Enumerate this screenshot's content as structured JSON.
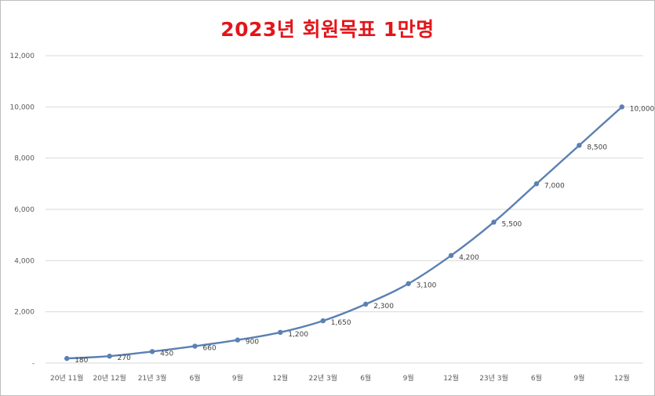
{
  "chart_data": {
    "type": "line",
    "title": "2023년 회원목표 1만명",
    "categories": [
      "20년 11월",
      "20년 12월",
      "21년 3월",
      "6월",
      "9월",
      "12월",
      "22년 3월",
      "6월",
      "9월",
      "12월",
      "23년 3월",
      "6월",
      "9월",
      "12월"
    ],
    "series": [
      {
        "values": [
          180,
          270,
          450,
          660,
          900,
          1200,
          1650,
          2300,
          3100,
          4200,
          5500,
          7000,
          8500,
          10000
        ],
        "labels": [
          "180",
          "270",
          "450",
          "660",
          "900",
          "1,200",
          "1,650",
          "2,300",
          "3,100",
          "4,200",
          "5,500",
          "7,000",
          "8,500",
          "10,000"
        ]
      }
    ],
    "ylim": [
      0,
      12000
    ],
    "yticks": [
      {
        "value": 0,
        "label": "-"
      },
      {
        "value": 2000,
        "label": "2,000"
      },
      {
        "value": 4000,
        "label": "4,000"
      },
      {
        "value": 6000,
        "label": "6,000"
      },
      {
        "value": 8000,
        "label": "8,000"
      },
      {
        "value": 10000,
        "label": "10,000"
      },
      {
        "value": 12000,
        "label": "12,000"
      }
    ],
    "grid": true,
    "line_color": "#5b80b2",
    "gridline_color": "#d9d9d9"
  }
}
